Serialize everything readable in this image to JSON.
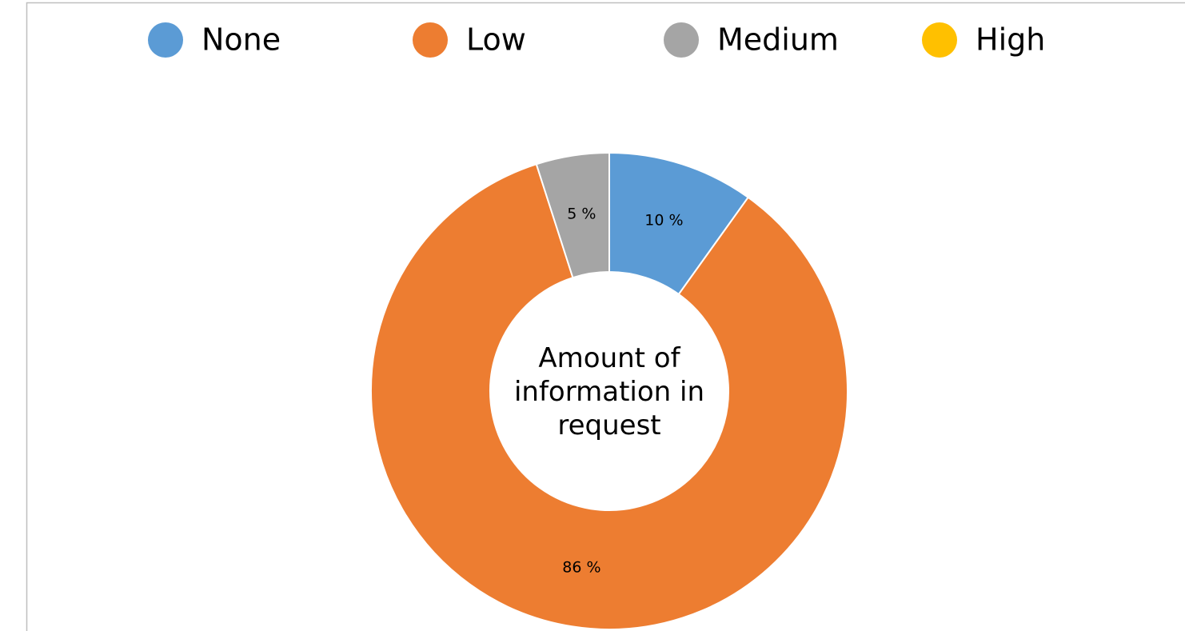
{
  "chart_data": {
    "type": "donut",
    "title": "Amount of information in request",
    "categories": [
      "None",
      "Low",
      "Medium",
      "High"
    ],
    "values": [
      10,
      86,
      5,
      0
    ],
    "value_labels": [
      "10 %",
      "86 %",
      "5 %",
      null
    ],
    "colors": [
      "#5b9bd5",
      "#ed7d31",
      "#a5a5a5",
      "#ffc000"
    ],
    "legend": "top"
  }
}
